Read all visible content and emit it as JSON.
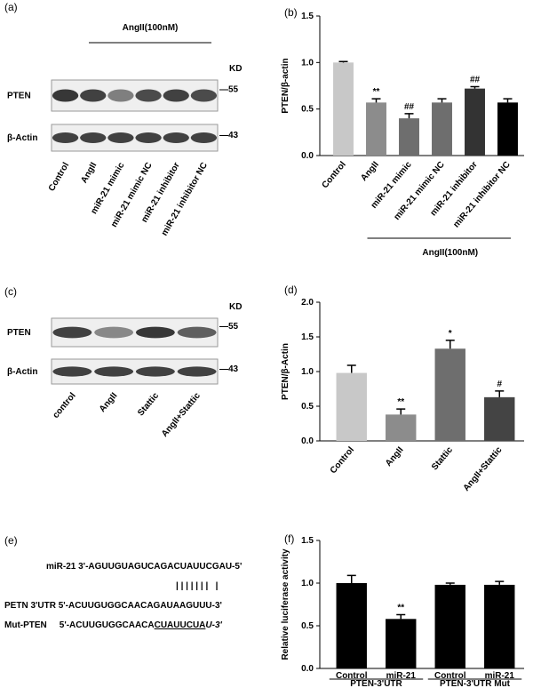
{
  "chart_data": [
    {
      "type": "bar",
      "panel_label": "(b)",
      "y_label": "PTEN/β-actin",
      "categories": [
        "Control",
        "AngII",
        "miR-21 mimic",
        "miR-21 mimic NC",
        "miR-21 inhibitor",
        "miR-21 inhibitor NC"
      ],
      "values": [
        1.0,
        0.57,
        0.4,
        0.57,
        0.72,
        0.57
      ],
      "errors": [
        0.01,
        0.04,
        0.05,
        0.04,
        0.02,
        0.04
      ],
      "colors": [
        "#c8c8c8",
        "#8c8c8c",
        "#6e6e6e",
        "#6e6e6e",
        "#333333",
        "#000000"
      ],
      "annotations": [
        null,
        "**",
        "##",
        null,
        "##",
        null
      ],
      "group_label": "AngII(100nM)",
      "ylim": [
        0,
        1.5
      ],
      "yticks": [
        {
          "value": 0,
          "label": "0.0"
        },
        0.5,
        {
          "value": 1,
          "label": "1.0"
        },
        1.5
      ]
    },
    {
      "type": "bar",
      "panel_label": "(d)",
      "y_label": "PTEN/β-Actin",
      "categories": [
        "Control",
        "AngII",
        "Stattic",
        "AngII+Stattic"
      ],
      "values": [
        0.98,
        0.38,
        1.33,
        0.63
      ],
      "errors": [
        0.11,
        0.08,
        0.12,
        0.09
      ],
      "colors": [
        "#c8c8c8",
        "#8c8c8c",
        "#6e6e6e",
        "#444444"
      ],
      "annotations": [
        null,
        "**",
        "*",
        "#"
      ],
      "ylim": [
        0,
        2
      ],
      "yticks": [
        {
          "value": 0,
          "label": "0.0"
        },
        0.5,
        {
          "value": 1,
          "label": "1.0"
        },
        1.5,
        {
          "value": 2,
          "label": "2.0"
        }
      ]
    },
    {
      "type": "bar",
      "panel_label": "(f)",
      "y_label": "Relative luciferase activity",
      "categories": [
        "Control",
        "miR-21",
        "Control",
        "miR-21"
      ],
      "values": [
        1.0,
        0.58,
        0.98,
        0.98
      ],
      "errors": [
        0.09,
        0.05,
        0.02,
        0.04
      ],
      "colors": [
        "#000000",
        "#000000",
        "#000000",
        "#000000"
      ],
      "annotations": [
        null,
        "**",
        null,
        null
      ],
      "groups": [
        "PTEN-3'UTR",
        "PTEN-3'UTR Mut"
      ],
      "ylim": [
        0,
        1.5
      ],
      "yticks": [
        {
          "value": 0,
          "label": "0.0"
        },
        0.5,
        {
          "value": 1,
          "label": "1.0"
        },
        1.5
      ]
    }
  ],
  "blots": [
    {
      "panel_label": "(a)",
      "treatment": "AngII(100nM)",
      "kd": "KD",
      "rows": [
        {
          "name": "PTEN",
          "kd": "—55"
        },
        {
          "name": "β-Actin",
          "kd": "—43"
        }
      ],
      "lanes": [
        "Control",
        "AngII",
        "miR-21 mimic",
        "miR-21 mimic NC",
        "miR-21 inhibitor",
        "miR-21 inhibitor NC"
      ]
    },
    {
      "panel_label": "(c)",
      "kd": "KD",
      "rows": [
        {
          "name": "PTEN",
          "kd": "—55"
        },
        {
          "name": "β-Actin",
          "kd": "—43"
        }
      ],
      "lanes": [
        "control",
        "AngII",
        "Stattic",
        "AngII+Stattic"
      ]
    }
  ],
  "sequences": {
    "panel_label": "(e)",
    "mir21": "miR-21 3'-AGUUGUAGUCAGACUAUUCGAU-5'",
    "pairing": "| | | | | | |   |",
    "pten": "PETN 3'UTR 5'-ACUUGUGGCAACAGAUAAGUUU-3'",
    "mut_name": "Mut-PTEN",
    "mut_prefix": "5'-ACUUGUGGCAACA",
    "mut_site": "CUAUUCUA",
    "mut_suffix": "U-3'"
  }
}
